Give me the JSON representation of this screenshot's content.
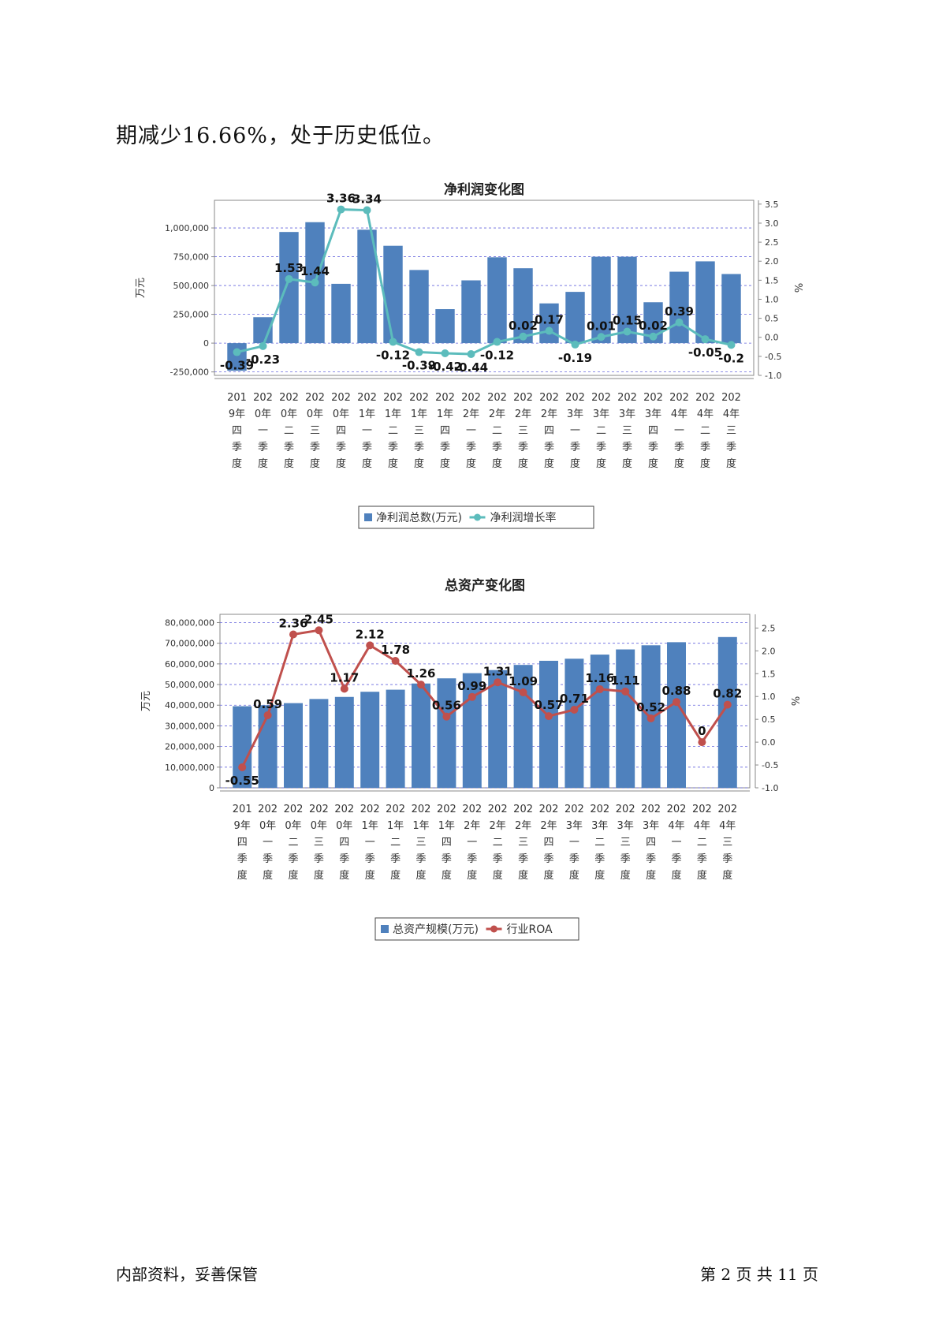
{
  "paragraph": "期减少16.66%，处于历史低位。",
  "footer": {
    "left": "内部资料，妥善保管",
    "right": "第 2 页 共 11 页"
  },
  "colors": {
    "bar": "#4f81bd",
    "line1": "#5cbcbc",
    "line2": "#c0504d",
    "grid": "#6666dd"
  },
  "chart_data": [
    {
      "type": "bar",
      "title": "净利润变化图",
      "ylabel": "万元",
      "y2label": "%",
      "categories": [
        "2019年四季度",
        "2020年一季度",
        "2020年二季度",
        "2020年三季度",
        "2020年四季度",
        "2021年一季度",
        "2021年二季度",
        "2021年三季度",
        "2021年四季度",
        "2022年一季度",
        "2022年二季度",
        "2022年三季度",
        "2022年四季度",
        "2023年一季度",
        "2023年二季度",
        "2023年三季度",
        "2023年四季度",
        "2024年一季度",
        "2024年二季度",
        "2024年三季度"
      ],
      "category_lines": [
        [
          "201",
          "9年",
          "四",
          "季",
          "度"
        ],
        [
          "202",
          "0年",
          "一",
          "季",
          "度"
        ],
        [
          "202",
          "0年",
          "二",
          "季",
          "度"
        ],
        [
          "202",
          "0年",
          "三",
          "季",
          "度"
        ],
        [
          "202",
          "0年",
          "四",
          "季",
          "度"
        ],
        [
          "202",
          "1年",
          "一",
          "季",
          "度"
        ],
        [
          "202",
          "1年",
          "二",
          "季",
          "度"
        ],
        [
          "202",
          "1年",
          "三",
          "季",
          "度"
        ],
        [
          "202",
          "1年",
          "四",
          "季",
          "度"
        ],
        [
          "202",
          "2年",
          "一",
          "季",
          "度"
        ],
        [
          "202",
          "2年",
          "二",
          "季",
          "度"
        ],
        [
          "202",
          "2年",
          "三",
          "季",
          "度"
        ],
        [
          "202",
          "2年",
          "四",
          "季",
          "度"
        ],
        [
          "202",
          "3年",
          "一",
          "季",
          "度"
        ],
        [
          "202",
          "3年",
          "二",
          "季",
          "度"
        ],
        [
          "202",
          "3年",
          "三",
          "季",
          "度"
        ],
        [
          "202",
          "3年",
          "四",
          "季",
          "度"
        ],
        [
          "202",
          "4年",
          "一",
          "季",
          "度"
        ],
        [
          "202",
          "4年",
          "二",
          "季",
          "度"
        ],
        [
          "202",
          "4年",
          "三",
          "季",
          "度"
        ]
      ],
      "y_ticks": [
        -250000,
        0,
        250000,
        500000,
        750000,
        1000000
      ],
      "y_tick_labels": [
        "-250,000",
        "0",
        "250,000",
        "500,000",
        "750,000",
        "1,000,000"
      ],
      "ylim": [
        -280000,
        1240000
      ],
      "y2_ticks": [
        -1.0,
        -0.5,
        0.0,
        0.5,
        1.0,
        1.5,
        2.0,
        2.5,
        3.0,
        3.5
      ],
      "y2_tick_labels": [
        "-1.0",
        "-0.5",
        "0.0",
        "0.5",
        "1.0",
        "1.5",
        "2.0",
        "2.5",
        "3.0",
        "3.5"
      ],
      "y2lim": [
        -1.0,
        3.6
      ],
      "series": [
        {
          "name": "净利润总数(万元)",
          "kind": "bar",
          "values": [
            -240000,
            225000,
            965000,
            1050000,
            515000,
            985000,
            845000,
            635000,
            295000,
            545000,
            745000,
            650000,
            345000,
            445000,
            750000,
            750000,
            355000,
            620000,
            710000,
            600000
          ]
        },
        {
          "name": "净利润增长率",
          "kind": "line",
          "values": [
            -0.39,
            -0.23,
            1.53,
            1.44,
            3.36,
            3.34,
            -0.12,
            -0.39,
            -0.42,
            -0.44,
            -0.12,
            0.02,
            0.17,
            -0.19,
            0.01,
            0.15,
            0.02,
            0.39,
            -0.05,
            -0.2
          ],
          "labels": [
            "-0.39",
            "-0.23",
            "1.53",
            "1.44",
            "3.36",
            "3.34",
            "-0.12",
            "-0.39",
            "-0.42",
            "-0.44",
            "-0.12",
            "0.02",
            "0.17",
            "-0.19",
            "0.01",
            "0.15",
            "0.02",
            "0.39",
            "-0.05",
            "-0.2"
          ]
        }
      ],
      "legend": "bottom"
    },
    {
      "type": "bar",
      "title": "总资产变化图",
      "ylabel": "万元",
      "y2label": "%",
      "categories": [
        "2019年四季度",
        "2020年一季度",
        "2020年二季度",
        "2020年三季度",
        "2020年四季度",
        "2021年一季度",
        "2021年二季度",
        "2021年三季度",
        "2021年四季度",
        "2022年一季度",
        "2022年二季度",
        "2022年三季度",
        "2022年四季度",
        "2023年一季度",
        "2023年二季度",
        "2023年三季度",
        "2023年四季度",
        "2024年一季度",
        "2024年二季度",
        "2024年三季度"
      ],
      "category_lines": [
        [
          "201",
          "9年",
          "四",
          "季",
          "度"
        ],
        [
          "202",
          "0年",
          "一",
          "季",
          "度"
        ],
        [
          "202",
          "0年",
          "二",
          "季",
          "度"
        ],
        [
          "202",
          "0年",
          "三",
          "季",
          "度"
        ],
        [
          "202",
          "0年",
          "四",
          "季",
          "度"
        ],
        [
          "202",
          "1年",
          "一",
          "季",
          "度"
        ],
        [
          "202",
          "1年",
          "二",
          "季",
          "度"
        ],
        [
          "202",
          "1年",
          "三",
          "季",
          "度"
        ],
        [
          "202",
          "1年",
          "四",
          "季",
          "度"
        ],
        [
          "202",
          "2年",
          "一",
          "季",
          "度"
        ],
        [
          "202",
          "2年",
          "二",
          "季",
          "度"
        ],
        [
          "202",
          "2年",
          "三",
          "季",
          "度"
        ],
        [
          "202",
          "2年",
          "四",
          "季",
          "度"
        ],
        [
          "202",
          "3年",
          "一",
          "季",
          "度"
        ],
        [
          "202",
          "3年",
          "二",
          "季",
          "度"
        ],
        [
          "202",
          "3年",
          "三",
          "季",
          "度"
        ],
        [
          "202",
          "3年",
          "四",
          "季",
          "度"
        ],
        [
          "202",
          "4年",
          "一",
          "季",
          "度"
        ],
        [
          "202",
          "4年",
          "二",
          "季",
          "度"
        ],
        [
          "202",
          "4年",
          "三",
          "季",
          "度"
        ]
      ],
      "y_ticks": [
        0,
        10000000,
        20000000,
        30000000,
        40000000,
        50000000,
        60000000,
        70000000,
        80000000
      ],
      "y_tick_labels": [
        "0",
        "10,000,000",
        "20,000,000",
        "30,000,000",
        "40,000,000",
        "50,000,000",
        "60,000,000",
        "70,000,000",
        "80,000,000"
      ],
      "ylim": [
        0,
        84000000
      ],
      "y2_ticks": [
        -1.0,
        -0.5,
        0.0,
        0.5,
        1.0,
        1.5,
        2.0,
        2.5
      ],
      "y2_tick_labels": [
        "-1.0",
        "-0.5",
        "0.0",
        "0.5",
        "1.0",
        "1.5",
        "2.0",
        "2.5"
      ],
      "y2lim": [
        -1.0,
        2.8
      ],
      "series": [
        {
          "name": "总资产规模(万元)",
          "kind": "bar",
          "values": [
            39500000,
            40000000,
            41000000,
            43000000,
            44000000,
            46500000,
            47500000,
            50500000,
            53000000,
            55500000,
            57000000,
            59500000,
            61500000,
            62500000,
            64500000,
            67000000,
            69000000,
            70500000,
            0,
            73000000
          ]
        },
        {
          "name": "行业ROA",
          "kind": "line",
          "values": [
            -0.55,
            0.59,
            2.36,
            2.45,
            1.17,
            2.12,
            1.78,
            1.26,
            0.56,
            0.99,
            1.31,
            1.09,
            0.57,
            0.71,
            1.16,
            1.11,
            0.52,
            0.88,
            0,
            0.82
          ],
          "labels": [
            "-0.55",
            "0.59",
            "2.36",
            "2.45",
            "1.17",
            "2.12",
            "1.78",
            "1.26",
            "0.56",
            "0.99",
            "1.31",
            "1.09",
            "0.57",
            "0.71",
            "1.16",
            "1.11",
            "0.52",
            "0.88",
            "0",
            "0.82"
          ]
        }
      ],
      "legend": "bottom"
    }
  ]
}
